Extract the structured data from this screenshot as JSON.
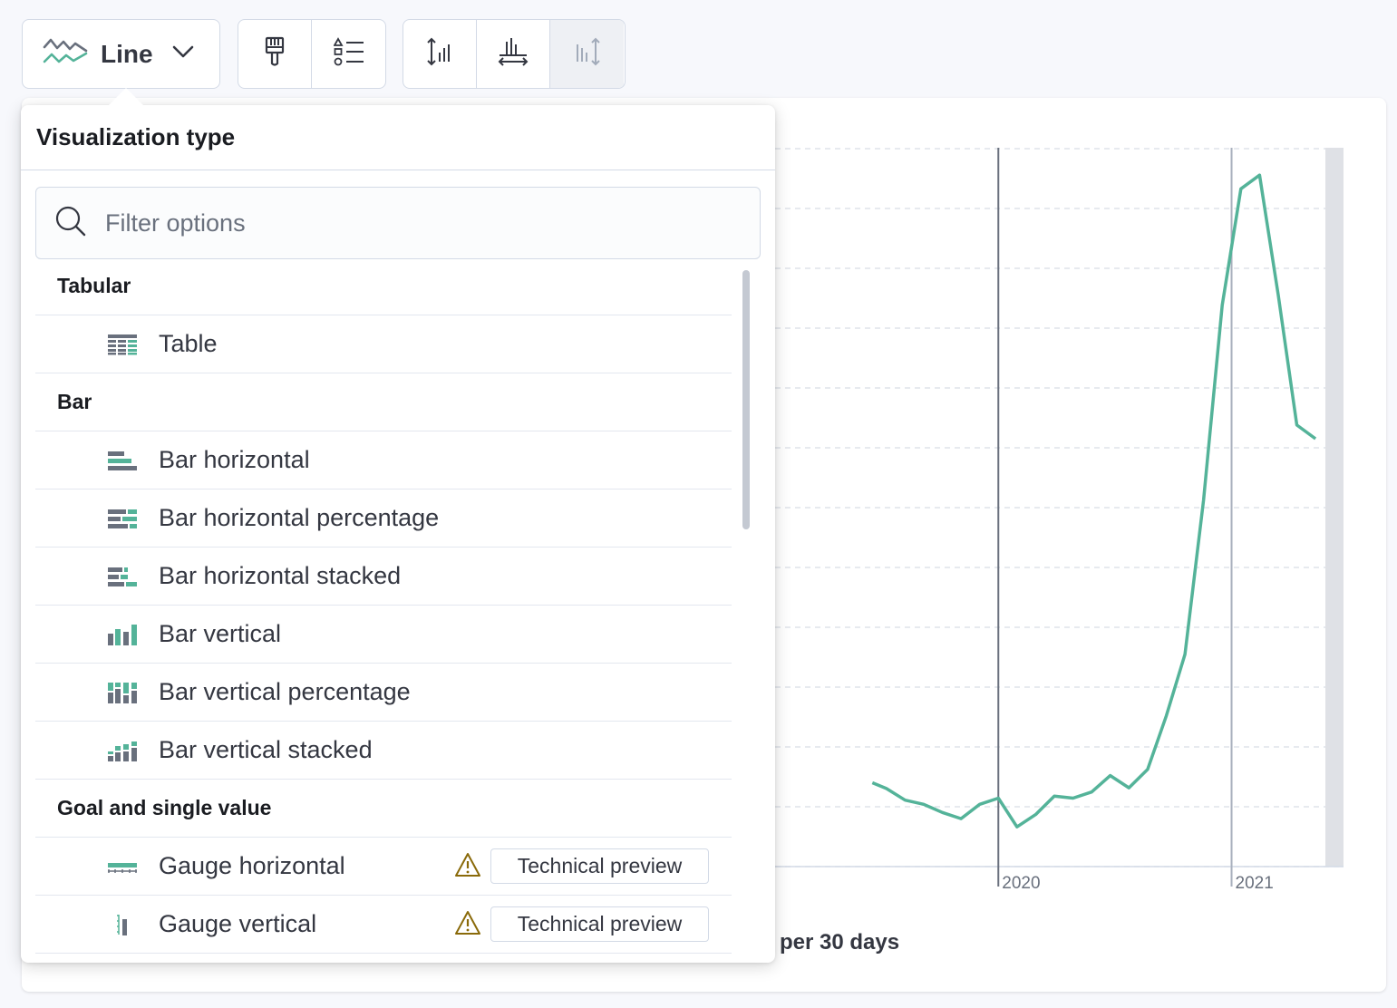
{
  "toolbar": {
    "viz_type_label": "Line",
    "icons": [
      "line-chart-icon",
      "chevron-down-icon",
      "brush-icon",
      "legend-icon",
      "left-axis-icon",
      "bottom-axis-icon",
      "right-axis-icon"
    ]
  },
  "popover": {
    "title": "Visualization type",
    "search_placeholder": "Filter options",
    "groups": [
      {
        "label": "Tabular",
        "options": [
          {
            "label": "Table",
            "icon": "table-icon"
          }
        ]
      },
      {
        "label": "Bar",
        "options": [
          {
            "label": "Bar horizontal",
            "icon": "bar-horizontal-icon"
          },
          {
            "label": "Bar horizontal percentage",
            "icon": "bar-horizontal-percentage-icon"
          },
          {
            "label": "Bar horizontal stacked",
            "icon": "bar-horizontal-stacked-icon"
          },
          {
            "label": "Bar vertical",
            "icon": "bar-vertical-icon"
          },
          {
            "label": "Bar vertical percentage",
            "icon": "bar-vertical-percentage-icon"
          },
          {
            "label": "Bar vertical stacked",
            "icon": "bar-vertical-stacked-icon"
          }
        ]
      },
      {
        "label": "Goal and single value",
        "options": [
          {
            "label": "Gauge horizontal",
            "icon": "gauge-horizontal-icon",
            "badge": "Technical preview"
          },
          {
            "label": "Gauge vertical",
            "icon": "gauge-vertical-icon",
            "badge": "Technical preview"
          }
        ]
      }
    ]
  },
  "colors": {
    "accent": "#54b399",
    "icon_dark": "#69707d",
    "warning": "#8a6a0a"
  },
  "chart_data": {
    "type": "line",
    "xlabel": "per 30 days",
    "x_tick_labels": [
      "2020",
      "2021"
    ],
    "grid": true,
    "series": [
      {
        "color": "#54b399",
        "values": [
          [
            2019.46,
            9.35
          ],
          [
            2019.52,
            9.18
          ],
          [
            2019.6,
            8.84
          ],
          [
            2019.68,
            8.72
          ],
          [
            2019.76,
            8.48
          ],
          [
            2019.84,
            8.3
          ],
          [
            2019.92,
            8.72
          ],
          [
            2020.0,
            8.9
          ],
          [
            2020.08,
            8.06
          ],
          [
            2020.16,
            8.42
          ],
          [
            2020.24,
            8.96
          ],
          [
            2020.32,
            8.9
          ],
          [
            2020.4,
            9.08
          ],
          [
            2020.48,
            9.56
          ],
          [
            2020.56,
            9.2
          ],
          [
            2020.64,
            9.74
          ],
          [
            2020.72,
            11.3
          ],
          [
            2020.8,
            13.1
          ],
          [
            2020.88,
            17.6
          ],
          [
            2020.96,
            23.3
          ],
          [
            2021.04,
            26.7
          ],
          [
            2021.12,
            27.1
          ],
          [
            2021.2,
            23.6
          ],
          [
            2021.28,
            19.8
          ],
          [
            2021.36,
            19.4
          ]
        ]
      }
    ]
  }
}
